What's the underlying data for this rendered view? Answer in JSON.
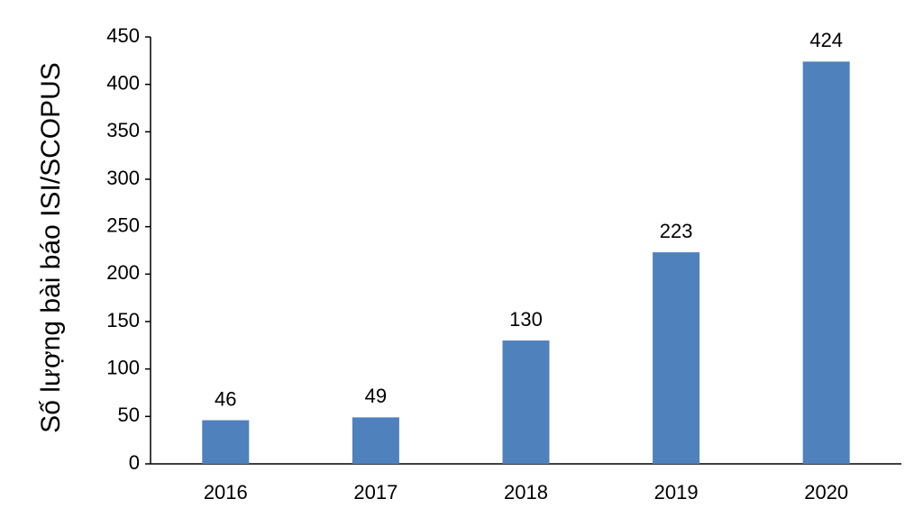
{
  "chart_data": {
    "type": "bar",
    "y_label": "Số lượng bài báo ISI/SCOPUS",
    "categories": [
      "2016",
      "2017",
      "2018",
      "2019",
      "2020"
    ],
    "values": [
      46,
      49,
      130,
      223,
      424
    ],
    "color": "#4f81bd",
    "ylim": [
      0,
      450
    ],
    "yticks": [
      0,
      50,
      100,
      150,
      200,
      250,
      300,
      350,
      400,
      450
    ],
    "grid": false
  }
}
